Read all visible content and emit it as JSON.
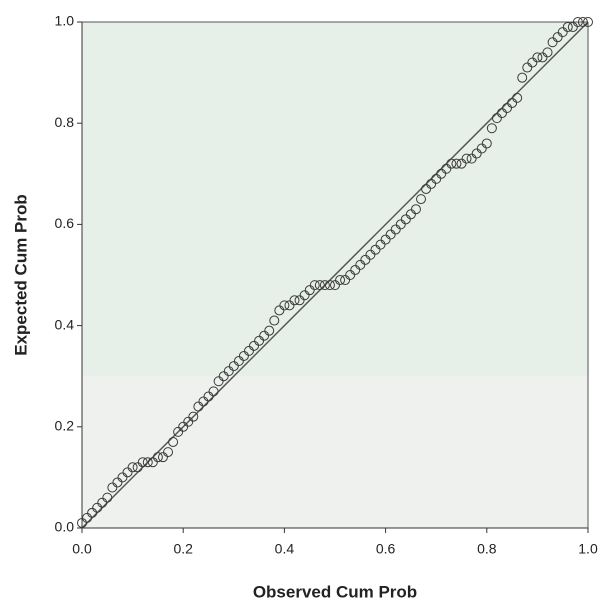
{
  "chart_data": {
    "type": "scatter",
    "x_label": "Observed Cum Prob",
    "y_label": "Expected Cum Prob",
    "x": [
      0.0,
      0.01,
      0.02,
      0.03,
      0.04,
      0.05,
      0.06,
      0.07,
      0.08,
      0.09,
      0.1,
      0.11,
      0.12,
      0.13,
      0.14,
      0.15,
      0.16,
      0.17,
      0.18,
      0.19,
      0.2,
      0.21,
      0.22,
      0.23,
      0.24,
      0.25,
      0.26,
      0.27,
      0.28,
      0.29,
      0.3,
      0.31,
      0.32,
      0.33,
      0.34,
      0.35,
      0.36,
      0.37,
      0.38,
      0.39,
      0.4,
      0.41,
      0.42,
      0.43,
      0.44,
      0.45,
      0.46,
      0.47,
      0.48,
      0.49,
      0.5,
      0.51,
      0.52,
      0.53,
      0.54,
      0.55,
      0.56,
      0.57,
      0.58,
      0.59,
      0.6,
      0.61,
      0.62,
      0.63,
      0.64,
      0.65,
      0.66,
      0.67,
      0.68,
      0.69,
      0.7,
      0.71,
      0.72,
      0.73,
      0.74,
      0.75,
      0.76,
      0.77,
      0.78,
      0.79,
      0.8,
      0.81,
      0.82,
      0.83,
      0.84,
      0.85,
      0.86,
      0.87,
      0.88,
      0.89,
      0.9,
      0.91,
      0.92,
      0.93,
      0.94,
      0.95,
      0.96,
      0.97,
      0.98,
      0.99,
      1.0
    ],
    "values": [
      0.01,
      0.02,
      0.03,
      0.04,
      0.05,
      0.06,
      0.08,
      0.09,
      0.1,
      0.11,
      0.12,
      0.12,
      0.13,
      0.13,
      0.13,
      0.14,
      0.14,
      0.15,
      0.17,
      0.19,
      0.2,
      0.21,
      0.22,
      0.24,
      0.25,
      0.26,
      0.27,
      0.29,
      0.3,
      0.31,
      0.32,
      0.33,
      0.34,
      0.35,
      0.36,
      0.37,
      0.38,
      0.39,
      0.41,
      0.43,
      0.44,
      0.44,
      0.45,
      0.45,
      0.46,
      0.47,
      0.48,
      0.48,
      0.48,
      0.48,
      0.48,
      0.49,
      0.49,
      0.5,
      0.51,
      0.52,
      0.53,
      0.54,
      0.55,
      0.56,
      0.57,
      0.58,
      0.59,
      0.6,
      0.61,
      0.62,
      0.63,
      0.65,
      0.67,
      0.68,
      0.69,
      0.7,
      0.71,
      0.72,
      0.72,
      0.72,
      0.73,
      0.73,
      0.74,
      0.75,
      0.76,
      0.79,
      0.81,
      0.82,
      0.83,
      0.84,
      0.85,
      0.89,
      0.91,
      0.92,
      0.93,
      0.93,
      0.94,
      0.96,
      0.97,
      0.98,
      0.99,
      0.99,
      1.0,
      1.0,
      1.0
    ],
    "color": "#3a3a3a",
    "xlim": [
      0,
      1
    ],
    "ylim": [
      0,
      1
    ],
    "xticks": [
      {
        "value": 0,
        "label": "0.0"
      },
      0.2,
      0.4,
      0.6,
      0.8,
      {
        "value": 1,
        "label": "1.0"
      }
    ],
    "yticks": [
      {
        "value": 0,
        "label": "0.0"
      },
      0.2,
      0.4,
      0.6,
      0.8,
      {
        "value": 1,
        "label": "1.0"
      }
    ]
  }
}
